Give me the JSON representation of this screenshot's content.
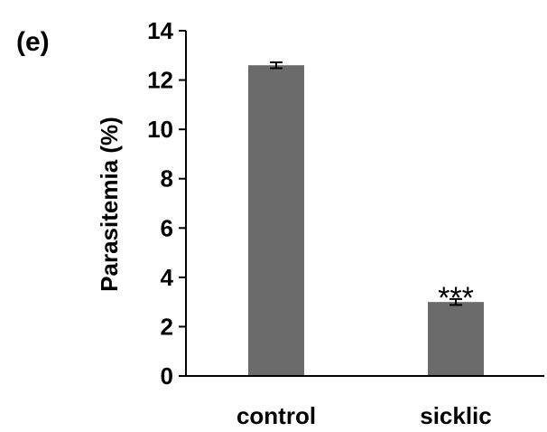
{
  "panel_label": "(e)",
  "chart_data": {
    "type": "bar",
    "title": "",
    "xlabel": "",
    "ylabel": "Parasitemia (%)",
    "ylim": [
      0,
      14
    ],
    "yticks": [
      0,
      2,
      4,
      6,
      8,
      10,
      12,
      14
    ],
    "categories": [
      "control",
      "sicklic"
    ],
    "values": [
      12.6,
      3.0
    ],
    "errors": [
      0.12,
      0.12
    ],
    "annotations": [
      "",
      "***"
    ],
    "grid": false,
    "legend": "none",
    "colors": {
      "bar": "#6b6b6b",
      "axis": "#000000",
      "text": "#000000"
    }
  }
}
